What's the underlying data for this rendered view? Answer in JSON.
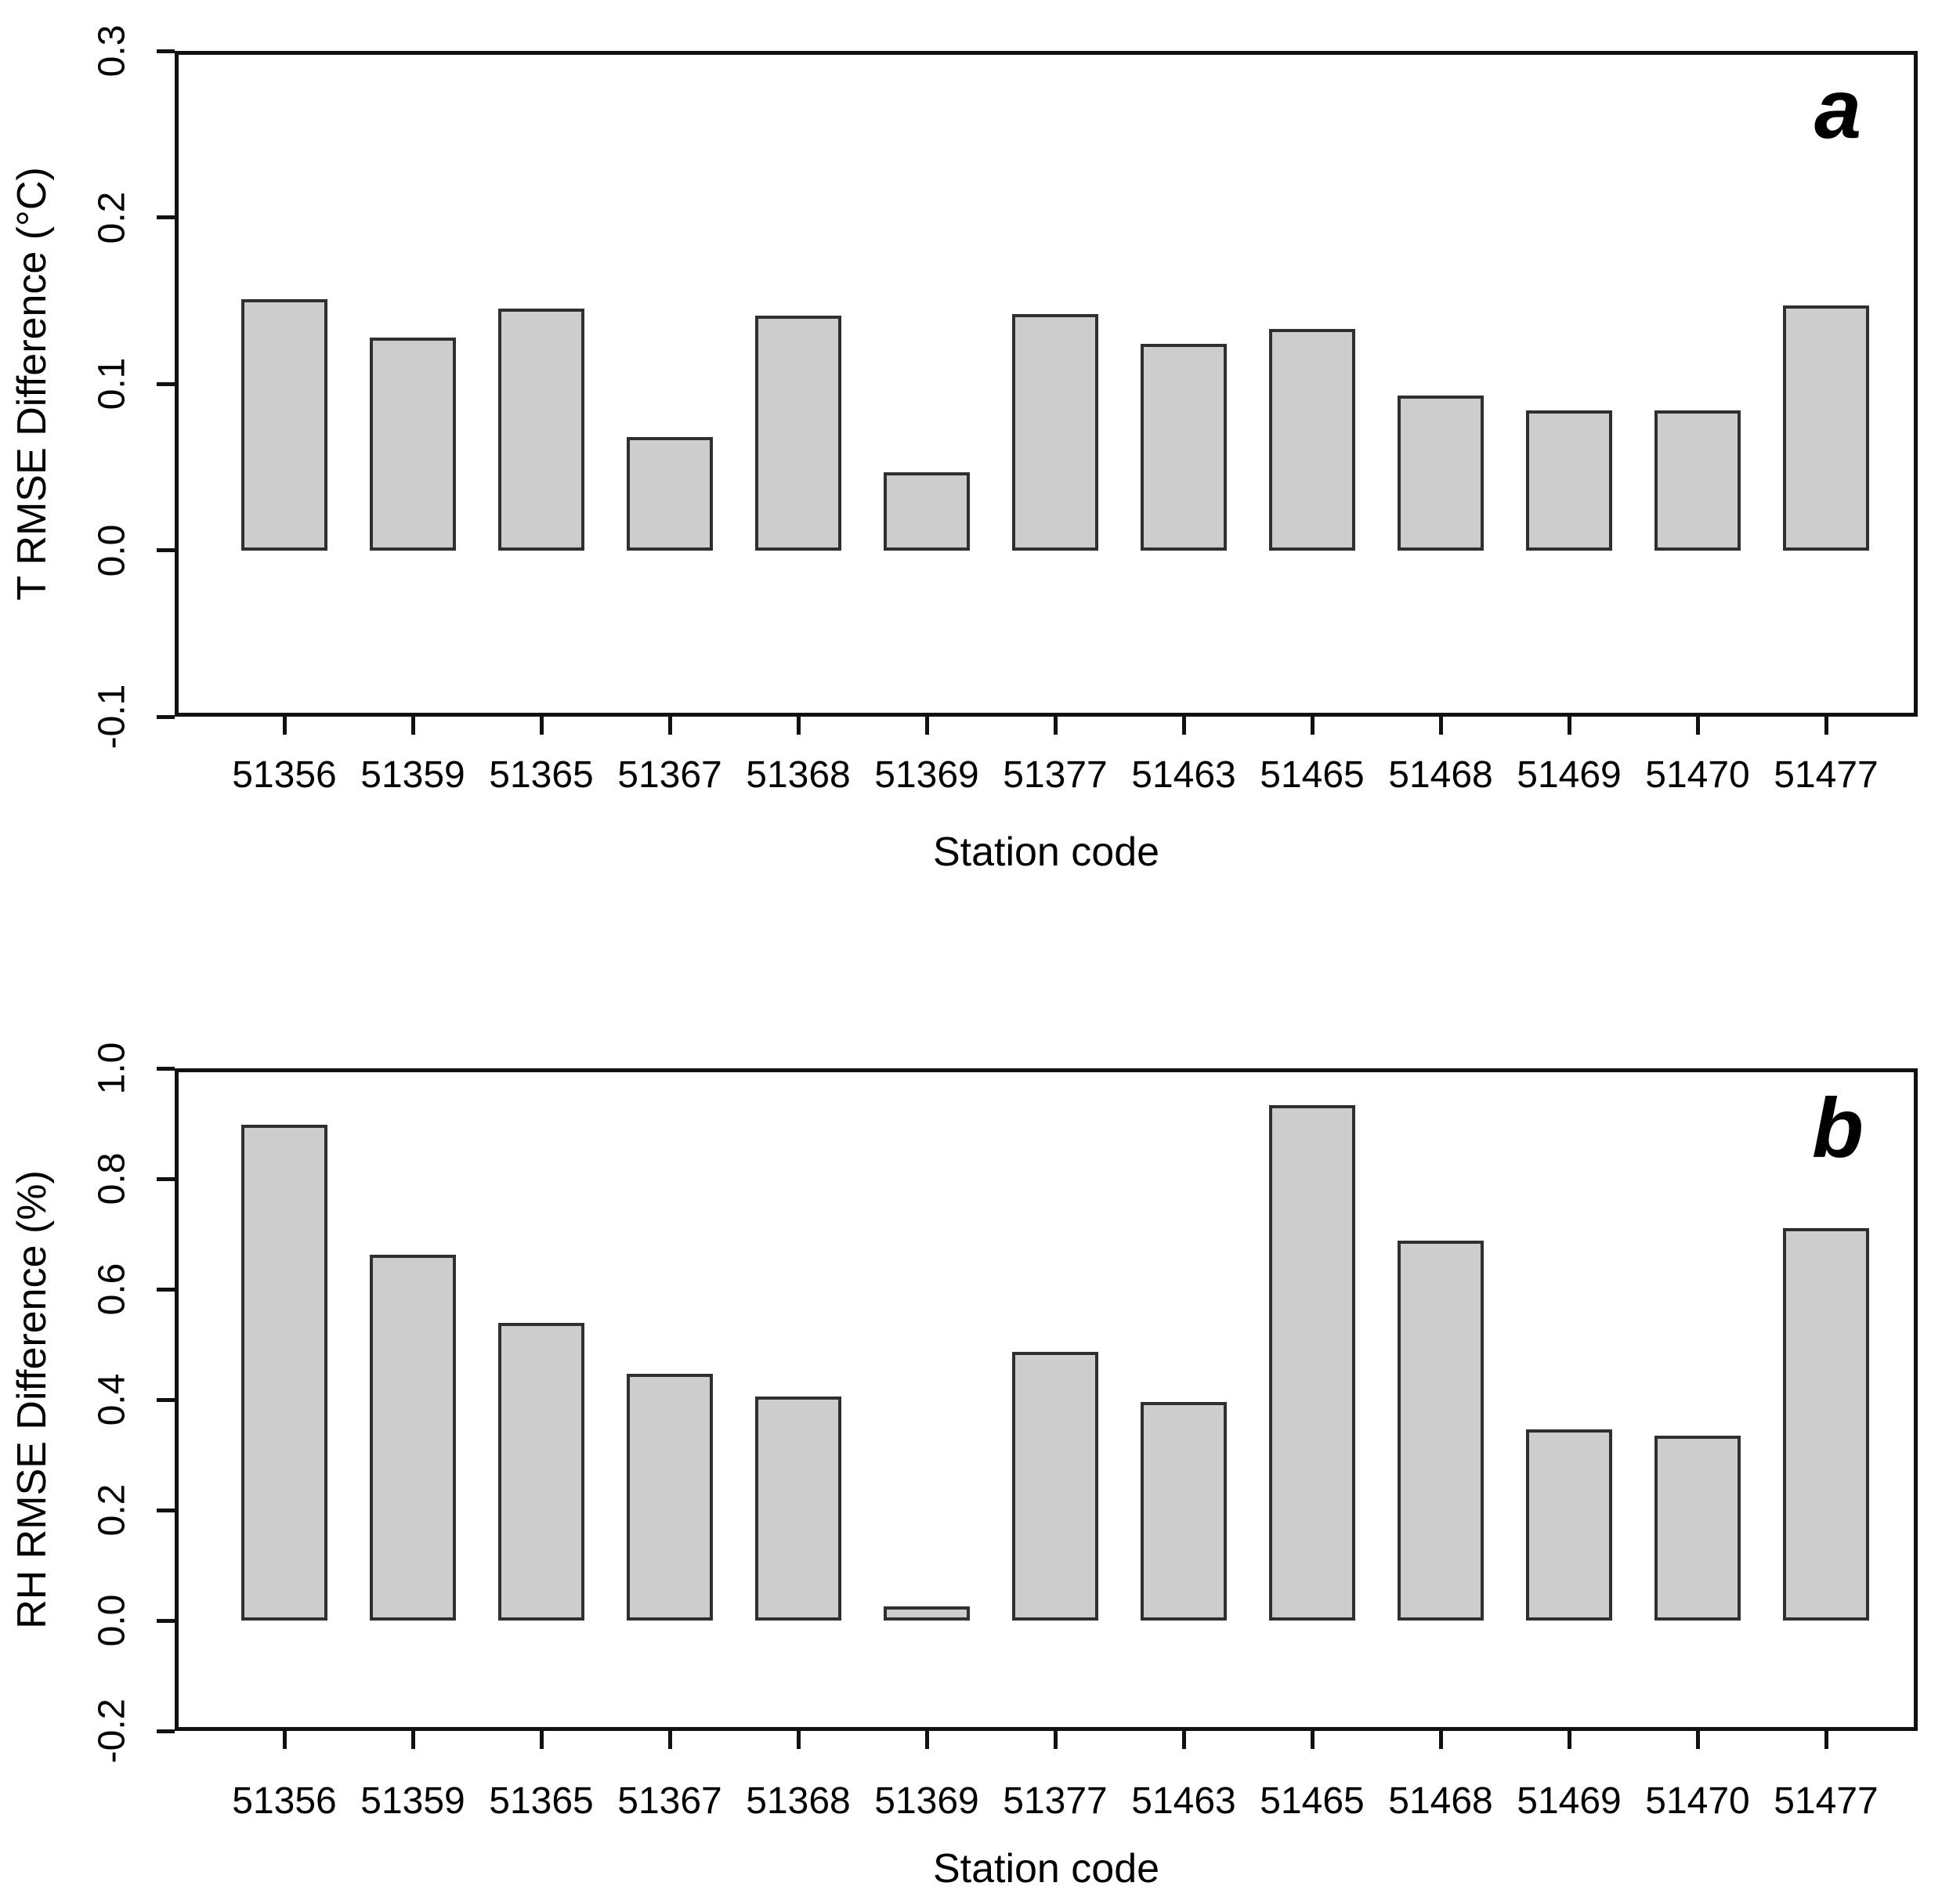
{
  "figure": {
    "background": "#ffffff",
    "bar_fill": "#cdcdcd",
    "bar_border": "#2f2f2f",
    "axis_color": "#111111"
  },
  "chart_data": [
    {
      "type": "bar",
      "panel_label": "a",
      "xlabel": "Station code",
      "ylabel": "T RMSE Difference (°C)",
      "categories": [
        "51356",
        "51359",
        "51365",
        "51367",
        "51368",
        "51369",
        "51377",
        "51463",
        "51465",
        "51468",
        "51469",
        "51470",
        "51477"
      ],
      "values": [
        0.151,
        0.128,
        0.145,
        0.068,
        0.141,
        0.047,
        0.142,
        0.124,
        0.133,
        0.093,
        0.084,
        0.084,
        0.147
      ],
      "ylim": [
        -0.1,
        0.3
      ],
      "yticks": [
        0.3,
        0.2,
        0.1,
        0.0,
        -0.1
      ],
      "ytick_labels": [
        "0.3",
        "0.2",
        "0.1",
        "0.0",
        "-0.1"
      ],
      "grid": false,
      "legend": "none"
    },
    {
      "type": "bar",
      "panel_label": "b",
      "xlabel": "Station code",
      "ylabel": "RH RMSE Difference (%)",
      "categories": [
        "51356",
        "51359",
        "51365",
        "51367",
        "51368",
        "51369",
        "51377",
        "51463",
        "51465",
        "51468",
        "51469",
        "51470",
        "51477"
      ],
      "values": [
        0.898,
        0.663,
        0.539,
        0.447,
        0.405,
        0.025,
        0.487,
        0.396,
        0.933,
        0.688,
        0.346,
        0.335,
        0.71
      ],
      "ylim": [
        -0.2,
        1.0
      ],
      "yticks": [
        1.0,
        0.8,
        0.6,
        0.4,
        0.2,
        0.0,
        -0.2
      ],
      "ytick_labels": [
        "1.0",
        "0.8",
        "0.6",
        "0.4",
        "0.2",
        "0.0",
        "-0.2"
      ],
      "grid": false,
      "legend": "none"
    }
  ]
}
